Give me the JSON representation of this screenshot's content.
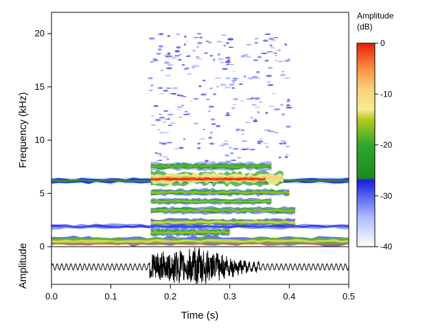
{
  "chart_data": {
    "type": "heatmap",
    "title": "",
    "xlabel": "Time (s)",
    "ylabel": "Frequency (kHz)",
    "xlim": [
      0,
      0.5
    ],
    "ylim": [
      0,
      22
    ],
    "x_ticks": [
      "0.0",
      "0.1",
      "0.2",
      "0.3",
      "0.4",
      "0.5"
    ],
    "y_ticks": [
      "0",
      "5",
      "10",
      "15",
      "20"
    ],
    "x_tick_values": [
      0,
      0.1,
      0.2,
      0.3,
      0.4,
      0.5
    ],
    "y_tick_values": [
      0,
      5,
      10,
      15,
      20
    ],
    "colorbar": {
      "title_line1": "Amplitude",
      "title_line2": "(dB)",
      "range": [
        -40,
        0
      ],
      "ticks": [
        "0",
        "-10",
        "-20",
        "-30",
        "-40"
      ],
      "tick_values": [
        0,
        -10,
        -20,
        -30,
        -40
      ],
      "stops": [
        {
          "db": -40,
          "color": "#ffffff"
        },
        {
          "db": -34,
          "color": "#a8b8ff"
        },
        {
          "db": -27,
          "color": "#1a20e0"
        },
        {
          "db": -26.5,
          "color": "#1e8a1e"
        },
        {
          "db": -20,
          "color": "#2ea82e"
        },
        {
          "db": -15,
          "color": "#b8c81e"
        },
        {
          "db": -13,
          "color": "#f6ec90"
        },
        {
          "db": -9,
          "color": "#f8d07a"
        },
        {
          "db": -5,
          "color": "#f89040"
        },
        {
          "db": 0,
          "color": "#e81e0a"
        }
      ]
    },
    "bands": [
      {
        "t0": 0.0,
        "t1": 0.5,
        "f0": 0.15,
        "f1": 0.9,
        "db": -18
      },
      {
        "t0": 0.0,
        "t1": 0.5,
        "f0": 0.2,
        "f1": 0.35,
        "db": -6
      },
      {
        "t0": 0.0,
        "t1": 0.5,
        "f0": 5.9,
        "f1": 6.5,
        "db": -27
      },
      {
        "t0": 0.0,
        "t1": 0.5,
        "f0": 1.6,
        "f1": 2.2,
        "db": -32
      },
      {
        "t0": 0.167,
        "t1": 0.39,
        "f0": 5.8,
        "f1": 7.0,
        "db": -13
      },
      {
        "t0": 0.167,
        "t1": 0.36,
        "f0": 6.1,
        "f1": 6.6,
        "db": -4
      },
      {
        "t0": 0.167,
        "t1": 0.37,
        "f0": 7.2,
        "f1": 7.9,
        "db": -22
      },
      {
        "t0": 0.167,
        "t1": 0.4,
        "f0": 4.8,
        "f1": 5.4,
        "db": -20
      },
      {
        "t0": 0.167,
        "t1": 0.37,
        "f0": 4.0,
        "f1": 4.5,
        "db": -20
      },
      {
        "t0": 0.167,
        "t1": 0.41,
        "f0": 3.1,
        "f1": 3.7,
        "db": -20
      },
      {
        "t0": 0.167,
        "t1": 0.41,
        "f0": 2.0,
        "f1": 2.6,
        "db": -18
      },
      {
        "t0": 0.167,
        "t1": 0.3,
        "f0": 1.0,
        "f1": 1.7,
        "db": -20
      },
      {
        "t0": 0.165,
        "t1": 0.4,
        "f0": 8.0,
        "f1": 20.0,
        "db": -31
      }
    ],
    "waveform_label": "Amplitude",
    "waveform": {
      "t_event_start": 0.165,
      "t_event_peak": 0.25,
      "t_event_end": 0.32,
      "baseline_relative_amplitude": 0.18,
      "burst_relative_amplitude": 1.0
    }
  }
}
